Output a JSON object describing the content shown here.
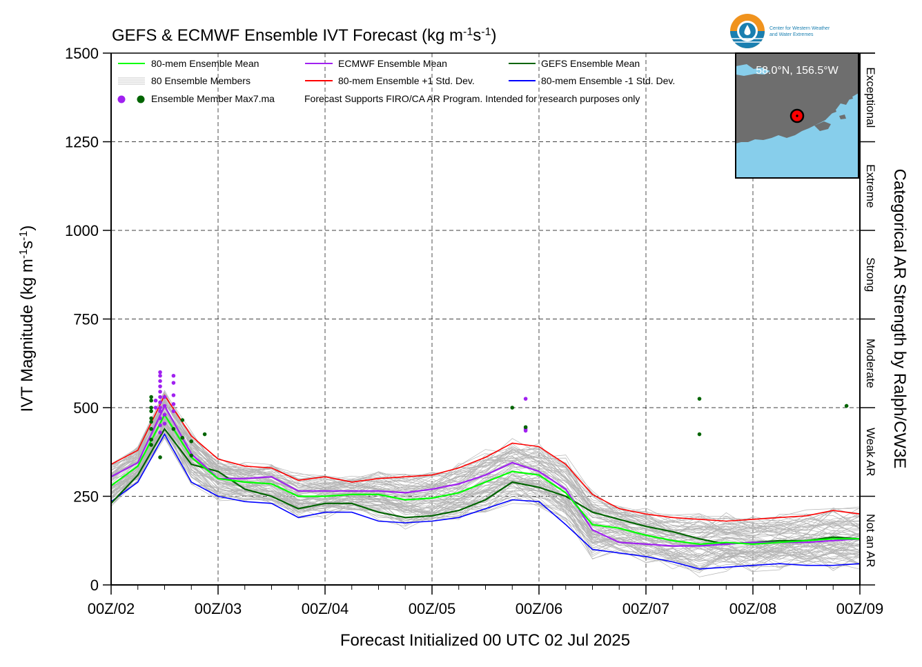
{
  "title": {
    "main": "GEFS & ECMWF Ensemble IVT Forecast (kg m",
    "sup1": "-1",
    "mid": "s",
    "sup2": "-1",
    "end": ")"
  },
  "ylabel": {
    "main": "IVT Magnitude (kg m",
    "sup1": "-1",
    "mid": "s",
    "sup2": "-1",
    "end": ")"
  },
  "xlabel": "Forecast Initialized 00 UTC 02 Jul 2025",
  "right_label": "Categorical AR Strength by Ralph/CW3E",
  "logo": {
    "line1": "Center for Western Weather",
    "line2": "and Water Extremes"
  },
  "inset": {
    "label": "58.0°N, 156.5°W",
    "land_color": "#6e6e6e",
    "water_color": "#87ceeb",
    "marker_color": "#ff0000"
  },
  "legend": {
    "row1": [
      "80-mem Ensemble Mean",
      "ECMWF Ensemble Mean",
      "GEFS Ensemble Mean"
    ],
    "row2": [
      "80 Ensemble Members",
      "80-mem Ensemble +1 Std. Dev.",
      "80-mem Ensemble -1 Std. Dev."
    ],
    "row3_label": "Ensemble Member Max7.ma",
    "note": "Forecast Supports FIRO/CA AR Program. Intended for research purposes only"
  },
  "categories": [
    {
      "name": "Not an AR",
      "range": [
        0,
        250
      ]
    },
    {
      "name": "Weak AR",
      "range": [
        250,
        500
      ]
    },
    {
      "name": "Moderate",
      "range": [
        500,
        750
      ]
    },
    {
      "name": "Strong",
      "range": [
        750,
        1000
      ]
    },
    {
      "name": "Extreme",
      "range": [
        1000,
        1250
      ]
    },
    {
      "name": "Exceptional",
      "range": [
        1250,
        1500
      ]
    }
  ],
  "colors": {
    "ens_mean": "#00ff00",
    "ecmwf_mean": "#a020f0",
    "gefs_mean": "#006400",
    "plus_std": "#ff0000",
    "minus_std": "#0000ff",
    "members": "#b4b4b4"
  },
  "chart_data": {
    "type": "line",
    "x_unit": "forecast hour from 00Z 02 Jul 2025 (6-hourly)",
    "xlim": [
      0,
      168
    ],
    "ylim": [
      0,
      1500
    ],
    "yticks": [
      0,
      250,
      500,
      750,
      1000,
      1250,
      1500
    ],
    "xtick_labels": [
      "00Z/02",
      "00Z/03",
      "00Z/04",
      "00Z/05",
      "00Z/06",
      "00Z/07",
      "00Z/08",
      "00Z/09"
    ],
    "xtick_values": [
      0,
      24,
      48,
      72,
      96,
      120,
      144,
      168
    ],
    "grid": true,
    "legend_position": "top-left",
    "x": [
      0,
      6,
      12,
      18,
      24,
      30,
      36,
      42,
      48,
      54,
      60,
      66,
      72,
      78,
      84,
      90,
      96,
      102,
      108,
      114,
      120,
      126,
      132,
      138,
      144,
      150,
      156,
      162,
      168
    ],
    "series": [
      {
        "name": "80-mem Ensemble Mean",
        "key": "ens_mean",
        "values": [
          280,
          335,
          480,
          360,
          300,
          290,
          285,
          250,
          250,
          255,
          255,
          240,
          245,
          260,
          290,
          320,
          310,
          260,
          170,
          160,
          140,
          125,
          115,
          120,
          115,
          120,
          125,
          130,
          130
        ]
      },
      {
        "name": "ECMWF Ensemble Mean",
        "key": "ecmwf_mean",
        "values": [
          305,
          345,
          505,
          370,
          300,
          300,
          305,
          265,
          265,
          265,
          265,
          260,
          270,
          285,
          310,
          345,
          320,
          270,
          155,
          120,
          115,
          110,
          110,
          115,
          120,
          120,
          120,
          125,
          130
        ]
      },
      {
        "name": "GEFS Ensemble Mean",
        "key": "gefs_mean",
        "values": [
          230,
          310,
          440,
          340,
          320,
          270,
          250,
          215,
          230,
          230,
          205,
          190,
          195,
          210,
          240,
          290,
          275,
          250,
          205,
          185,
          165,
          150,
          130,
          115,
          120,
          125,
          125,
          135,
          130
        ]
      },
      {
        "name": "80-mem Ensemble +1 Std. Dev.",
        "key": "plus_std",
        "values": [
          340,
          380,
          535,
          420,
          355,
          335,
          330,
          295,
          305,
          290,
          300,
          305,
          310,
          330,
          360,
          400,
          390,
          340,
          255,
          215,
          200,
          190,
          185,
          180,
          185,
          190,
          195,
          210,
          200
        ]
      },
      {
        "name": "80-mem Ensemble -1 Std. Dev.",
        "key": "minus_std",
        "values": [
          235,
          290,
          425,
          290,
          250,
          235,
          230,
          190,
          205,
          205,
          180,
          175,
          180,
          190,
          215,
          240,
          235,
          170,
          100,
          90,
          80,
          65,
          45,
          50,
          55,
          60,
          55,
          55,
          60
        ]
      }
    ],
    "max_markers": {
      "ecmwf": [
        [
          11,
          600
        ],
        [
          11,
          590
        ],
        [
          11,
          575
        ],
        [
          11,
          560
        ],
        [
          11,
          545
        ],
        [
          11,
          530
        ],
        [
          11,
          515
        ],
        [
          11,
          500
        ],
        [
          11,
          490
        ],
        [
          11,
          470
        ],
        [
          11,
          450
        ],
        [
          11,
          430
        ],
        [
          12,
          530
        ],
        [
          12,
          505
        ],
        [
          12,
          480
        ],
        [
          12,
          455
        ],
        [
          10,
          520
        ],
        [
          14,
          590
        ],
        [
          14,
          570
        ],
        [
          14,
          535
        ],
        [
          14,
          510
        ],
        [
          93,
          525
        ],
        [
          93,
          440
        ],
        [
          93,
          435
        ],
        [
          14,
          490
        ],
        [
          10,
          500
        ]
      ],
      "gefs": [
        [
          9,
          530
        ],
        [
          9,
          520
        ],
        [
          9,
          500
        ],
        [
          9,
          490
        ],
        [
          9,
          470
        ],
        [
          9,
          460
        ],
        [
          9,
          440
        ],
        [
          9,
          410
        ],
        [
          9,
          395
        ],
        [
          11,
          360
        ],
        [
          14,
          440
        ],
        [
          16,
          465
        ],
        [
          16,
          415
        ],
        [
          18,
          405
        ],
        [
          18,
          365
        ],
        [
          21,
          425
        ],
        [
          90,
          500
        ],
        [
          93,
          445
        ],
        [
          132,
          525
        ],
        [
          132,
          425
        ],
        [
          165,
          505
        ]
      ]
    }
  }
}
